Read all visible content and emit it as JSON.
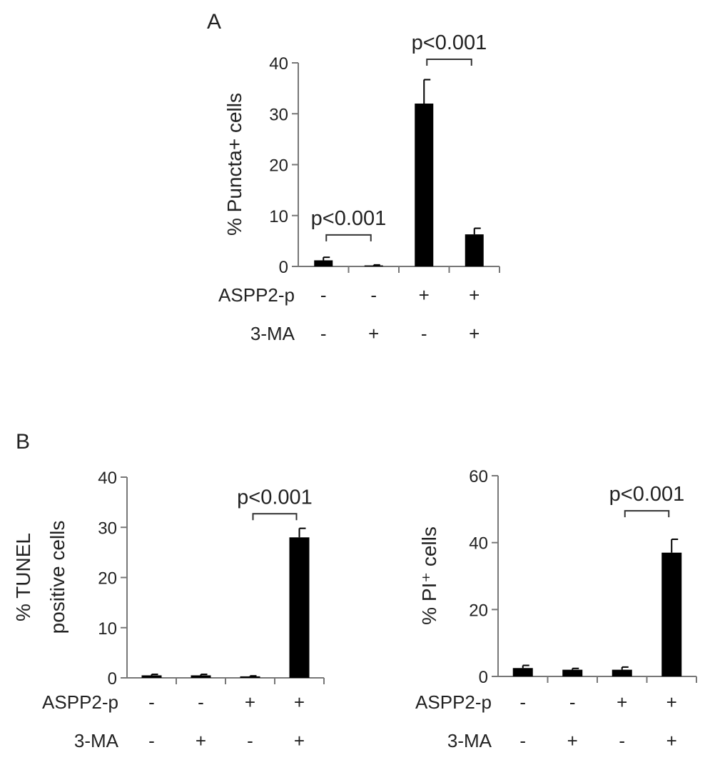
{
  "panels": {
    "a": {
      "label": "A"
    },
    "b": {
      "label": "B"
    }
  },
  "colors": {
    "bar": "#000000",
    "axis": "#777777",
    "text": "#222222"
  },
  "chart_data": [
    {
      "type": "bar",
      "panel": "A",
      "ylabel": "% Puncta+ cells",
      "ylim": [
        0,
        40
      ],
      "yticks": [
        "0",
        "10",
        "20",
        "30",
        "40"
      ],
      "yticks_values": [
        0,
        10,
        20,
        30,
        40
      ],
      "values": [
        1.2,
        0.2,
        32,
        6.3
      ],
      "errors": [
        0.6,
        0.1,
        4.7,
        1.2
      ],
      "conditions": [
        {
          "label": "ASPP2-p",
          "values": [
            "-",
            "-",
            "+",
            "+"
          ]
        },
        {
          "label": "3-MA",
          "values": [
            "-",
            "+",
            "-",
            "+"
          ]
        }
      ],
      "annotations": [
        {
          "text": "p<0.001",
          "from": 0,
          "to": 1,
          "y": 6.2
        },
        {
          "text": "p<0.001",
          "from": 2,
          "to": 3,
          "y": 40.7
        }
      ]
    },
    {
      "type": "bar",
      "panel": "B-left",
      "ylabel": [
        "% TUNEL",
        "positive cells"
      ],
      "ylim": [
        0,
        40
      ],
      "yticks": [
        "0",
        "10",
        "20",
        "30",
        "40"
      ],
      "yticks_values": [
        0,
        10,
        20,
        30,
        40
      ],
      "values": [
        0.5,
        0.5,
        0.3,
        28
      ],
      "errors": [
        0.2,
        0.2,
        0.1,
        1.8
      ],
      "conditions": [
        {
          "label": "ASPP2-p",
          "values": [
            "-",
            "-",
            "+",
            "+"
          ]
        },
        {
          "label": "3-MA",
          "values": [
            "-",
            "+",
            "-",
            "+"
          ]
        }
      ],
      "annotations": [
        {
          "text": "p<0.001",
          "from": 2,
          "to": 3,
          "y": 32.7
        }
      ]
    },
    {
      "type": "bar",
      "panel": "B-right",
      "ylabel": "% PI⁺ cells",
      "ylim": [
        0,
        60
      ],
      "yticks": [
        "0",
        "20",
        "40",
        "60"
      ],
      "yticks_values": [
        0,
        20,
        40,
        60
      ],
      "values": [
        2.5,
        2,
        2,
        37
      ],
      "errors": [
        0.8,
        0.4,
        0.8,
        4
      ],
      "conditions": [
        {
          "label": "ASPP2-p",
          "values": [
            "-",
            "-",
            "+",
            "+"
          ]
        },
        {
          "label": "3-MA",
          "values": [
            "-",
            "+",
            "-",
            "+"
          ]
        }
      ],
      "annotations": [
        {
          "text": "p<0.001",
          "from": 2,
          "to": 3,
          "y": 49.5
        }
      ]
    }
  ]
}
